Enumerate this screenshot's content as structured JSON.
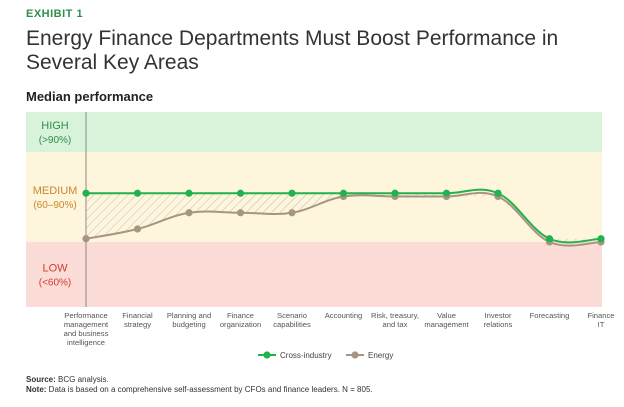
{
  "exhibit": "EXHIBIT 1",
  "title": "Energy Finance Departments Must Boost Performance in Several Key Areas",
  "subtitle": "Median performance",
  "footer": {
    "source_label": "Source:",
    "source_text": " BCG analysis.",
    "note_label": "Note:",
    "note_text": " Data is based on a comprehensive self-assessment by CFOs and finance leaders. N = 805."
  },
  "colors": {
    "high_band": "#d9f2da",
    "medium_band": "#fdf5dc",
    "low_band": "#fbdcd6",
    "cross_industry": "#21b24b",
    "energy": "#a89483",
    "band_text_high": "#2f8f4a",
    "band_text_medium": "#c9892a",
    "band_text_low": "#d23b2f"
  },
  "chart_data": {
    "type": "line",
    "bands": [
      {
        "label": "HIGH",
        "range": "(>90%)"
      },
      {
        "label": "MEDIUM",
        "range": "(60–90%)"
      },
      {
        "label": "LOW",
        "range": "(<60%)"
      }
    ],
    "categories": [
      [
        "Performance",
        "management",
        "and business",
        "intelligence"
      ],
      [
        "Financial",
        "strategy"
      ],
      [
        "Planning and",
        "budgeting"
      ],
      [
        "Finance",
        "organization"
      ],
      [
        "Scenario",
        "capabilities"
      ],
      [
        "Accounting"
      ],
      [
        "Risk, treasury,",
        "and tax"
      ],
      [
        "Value",
        "management"
      ],
      [
        "Investor",
        "relations"
      ],
      [
        "Forecasting"
      ],
      [
        "Finance",
        "IT"
      ]
    ],
    "ylim": [
      40,
      100
    ],
    "series": [
      {
        "name": "Cross-industry",
        "values": [
          75,
          75,
          75,
          75,
          75,
          75,
          75,
          75,
          75,
          61,
          61
        ]
      },
      {
        "name": "Energy",
        "values": [
          61,
          64,
          69,
          69,
          69,
          74,
          74,
          74,
          74,
          60,
          60
        ]
      }
    ],
    "legend": "bottom-center",
    "shaded_gap": true
  }
}
